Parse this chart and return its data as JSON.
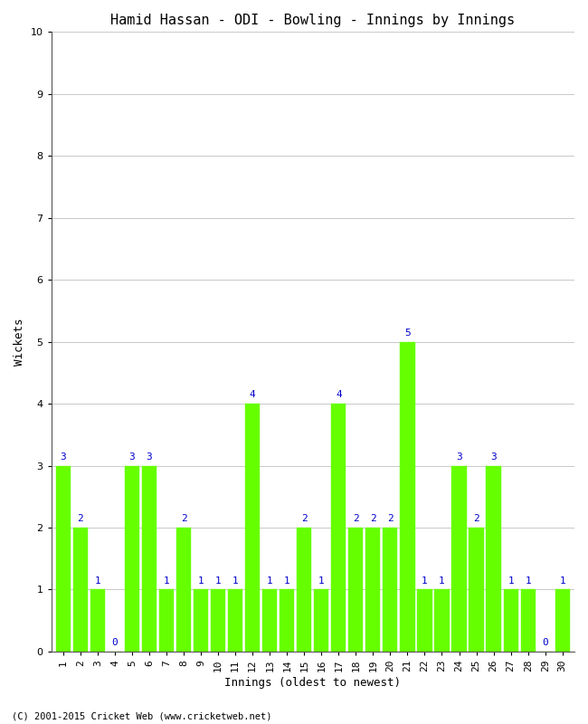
{
  "title": "Hamid Hassan - ODI - Bowling - Innings by Innings",
  "xlabel": "Innings (oldest to newest)",
  "ylabel": "Wickets",
  "innings": [
    1,
    2,
    3,
    4,
    5,
    6,
    7,
    8,
    9,
    10,
    11,
    12,
    13,
    14,
    15,
    16,
    17,
    18,
    19,
    20,
    21,
    22,
    23,
    24,
    25,
    26,
    27,
    28,
    29,
    30
  ],
  "wickets": [
    3,
    2,
    1,
    0,
    3,
    3,
    1,
    2,
    1,
    1,
    1,
    4,
    1,
    1,
    2,
    1,
    4,
    2,
    2,
    2,
    5,
    1,
    1,
    3,
    2,
    3,
    1,
    1,
    0,
    1
  ],
  "bar_color": "#66ff00",
  "bar_edge_color": "#66ff00",
  "label_color": "#0000cc",
  "background_color": "#ffffff",
  "grid_color": "#c8c8c8",
  "ylim": [
    0,
    10
  ],
  "yticks": [
    0,
    1,
    2,
    3,
    4,
    5,
    6,
    7,
    8,
    9,
    10
  ],
  "title_fontsize": 11,
  "label_fontsize": 9,
  "tick_fontsize": 8,
  "annotation_fontsize": 8,
  "footer_text": "(C) 2001-2015 Cricket Web (www.cricketweb.net)",
  "footer_fontsize": 7.5
}
